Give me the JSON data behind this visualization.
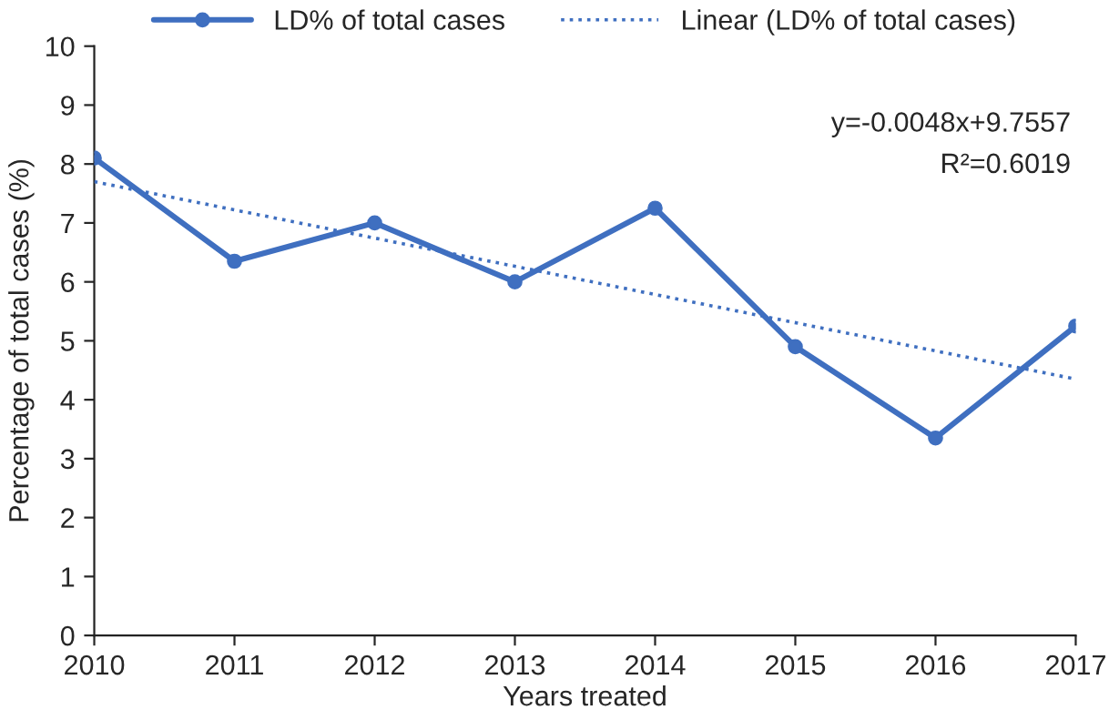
{
  "chart_data": {
    "type": "line",
    "xlabel": "Years treated",
    "ylabel": "Percentage of total cases (%)",
    "x": [
      2010,
      2011,
      2012,
      2013,
      2014,
      2015,
      2016,
      2017
    ],
    "series": [
      {
        "name": "LD% of total cases",
        "color": "#3f6fc0",
        "values": [
          8.1,
          6.35,
          7.0,
          6.0,
          7.25,
          4.9,
          3.35,
          5.25
        ],
        "marker": "circle",
        "line_style": "solid"
      },
      {
        "name": "Linear (LD% of total cases)",
        "color": "#3f6fc0",
        "type": "line",
        "x": [
          2010,
          2017
        ],
        "values": [
          7.7,
          4.35
        ],
        "marker": "none",
        "line_style": "dotted"
      }
    ],
    "xlim": [
      2010,
      2017
    ],
    "xticks": [
      2010,
      2011,
      2012,
      2013,
      2014,
      2015,
      2016,
      2017
    ],
    "ylim": [
      0,
      10
    ],
    "yticks": [
      0,
      1,
      2,
      3,
      4,
      5,
      6,
      7,
      8,
      9,
      10
    ],
    "annotations": [
      "y=-0.0048x+9.7557",
      "R²=0.6019"
    ],
    "grid": false,
    "legend": "top"
  }
}
